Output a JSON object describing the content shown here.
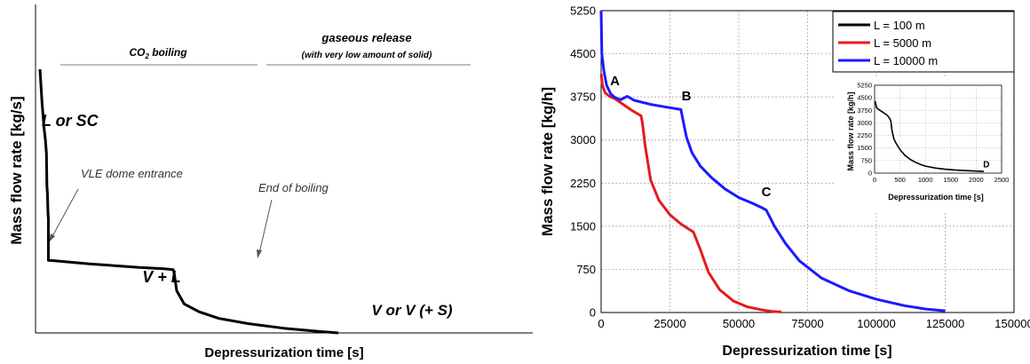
{
  "chart_data": [
    {
      "type": "line",
      "title": "",
      "xlabel": "Depressurization time [s]",
      "ylabel": "Mass flow rate [kg/s]",
      "axes_ticks": "none",
      "grid": false,
      "schematic": true,
      "phases": [
        {
          "label": "CO",
          "label_sub": "2",
          "label_suffix": " boiling",
          "x_start": 0.035,
          "x_end": 0.25
        },
        {
          "label": "gaseous release",
          "sublabel": "(with very low amount of solid)",
          "x_start": 0.27,
          "x_end": 0.56
        }
      ],
      "regions": [
        {
          "text": "L or SC"
        },
        {
          "text": "V + L"
        },
        {
          "text": "V or V (+ S)"
        }
      ],
      "annotations": [
        {
          "text": "VLE dome entrance"
        },
        {
          "text": "End of boiling"
        }
      ],
      "series": [
        {
          "name": "",
          "color": "#000000",
          "x": [
            0.0,
            0.004,
            0.008,
            0.011,
            0.013,
            0.014,
            0.015,
            0.016,
            0.017,
            0.017,
            0.02,
            0.05,
            0.1,
            0.2,
            0.25,
            0.268,
            0.27,
            0.275,
            0.29,
            0.32,
            0.36,
            0.42,
            0.49,
            0.56,
            0.6
          ],
          "y": [
            1.0,
            0.88,
            0.78,
            0.73,
            0.68,
            0.56,
            0.53,
            0.46,
            0.43,
            0.275,
            0.275,
            0.27,
            0.262,
            0.248,
            0.243,
            0.24,
            0.225,
            0.16,
            0.11,
            0.08,
            0.055,
            0.035,
            0.018,
            0.006,
            0.0
          ]
        }
      ]
    },
    {
      "type": "line",
      "title": "",
      "xlabel": "Depressurization time [s]",
      "ylabel": "Mass flow rate [kg/h]",
      "xlim": [
        0,
        150000
      ],
      "ylim": [
        0,
        5250
      ],
      "xticks": [
        0,
        25000,
        50000,
        75000,
        100000,
        125000,
        150000
      ],
      "yticks": [
        0,
        750,
        1500,
        2250,
        3000,
        3750,
        4500,
        5250
      ],
      "grid": true,
      "legend_position": "top-right",
      "annotations": [
        {
          "text": "A",
          "x": 5000,
          "y": 3950
        },
        {
          "text": "B",
          "x": 31000,
          "y": 3690
        },
        {
          "text": "C",
          "x": 60000,
          "y": 2020
        }
      ],
      "series": [
        {
          "name": "L = 100 m",
          "color": "#000000",
          "x": [],
          "y": []
        },
        {
          "name": "L = 5000 m",
          "color": "#e41a1c",
          "x": [
            0,
            500,
            1500,
            3000,
            5000,
            8000,
            11000,
            14500,
            15000,
            16000,
            18000,
            21000,
            25000,
            29000,
            32500,
            33500,
            36000,
            39000,
            43000,
            48000,
            53000,
            58000,
            62000,
            65500
          ],
          "y": [
            4150,
            3950,
            3820,
            3760,
            3720,
            3620,
            3520,
            3420,
            3300,
            2900,
            2300,
            1950,
            1700,
            1540,
            1430,
            1400,
            1100,
            700,
            400,
            200,
            100,
            50,
            20,
            10
          ]
        },
        {
          "name": "L = 10000 m",
          "color": "#1a1aff",
          "x": [
            0,
            250,
            1000,
            2000,
            3500,
            5000,
            7000,
            9500,
            12000,
            18000,
            24000,
            29000,
            29500,
            31000,
            33000,
            36000,
            40000,
            45000,
            50000,
            55000,
            58500,
            60000,
            63000,
            67000,
            72000,
            80000,
            90000,
            100000,
            110000,
            118000,
            125000
          ],
          "y": [
            5250,
            4500,
            4200,
            3950,
            3800,
            3740,
            3700,
            3760,
            3690,
            3620,
            3570,
            3530,
            3400,
            3050,
            2780,
            2550,
            2350,
            2150,
            2000,
            1900,
            1820,
            1780,
            1500,
            1200,
            900,
            600,
            380,
            230,
            120,
            60,
            30
          ]
        }
      ],
      "inset": {
        "type": "line",
        "xlabel": "Depressurization time [s]",
        "ylabel": "Mass flow rate [kg/h]",
        "xlim": [
          0,
          2500
        ],
        "ylim": [
          0,
          5250
        ],
        "xticks": [
          0,
          500,
          1000,
          1500,
          2000,
          2500
        ],
        "yticks": [
          0,
          750,
          1500,
          2250,
          3000,
          3750,
          4500,
          5250
        ],
        "grid": true,
        "annotations": [
          {
            "text": "D",
            "x": 2200,
            "y": 350
          }
        ],
        "series": [
          {
            "name": "L = 100 m",
            "color": "#000000",
            "x": [
              10,
              40,
              80,
              130,
              180,
              250,
              300,
              320,
              340,
              360,
              380,
              420,
              500,
              600,
              700,
              800,
              900,
              1000,
              1200,
              1400,
              1600,
              1800,
              2000,
              2150
            ],
            "y": [
              4300,
              3900,
              3800,
              3700,
              3600,
              3450,
              3250,
              3100,
              2600,
              2300,
              2050,
              1800,
              1400,
              1050,
              820,
              650,
              520,
              420,
              300,
              230,
              180,
              150,
              120,
              100
            ]
          }
        ]
      }
    }
  ]
}
